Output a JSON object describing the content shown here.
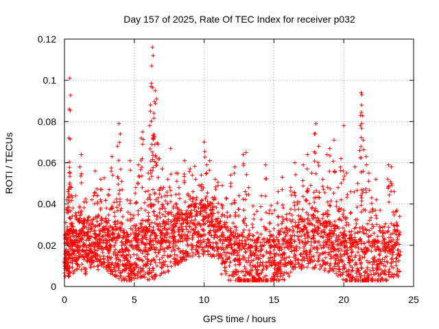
{
  "chart_data": {
    "type": "scatter",
    "title": "Day 157 of 2025, Rate Of TEC Index for receiver p032",
    "xlabel": "GPS time / hours",
    "ylabel": "ROTI / TECUs",
    "xlim": [
      0,
      25
    ],
    "ylim": [
      0,
      0.12
    ],
    "x_ticks": [
      0,
      5,
      10,
      15,
      20,
      25
    ],
    "y_ticks": [
      0,
      0.02,
      0.04,
      0.06,
      0.08,
      0.1,
      0.12
    ],
    "x_tick_labels": [
      "0",
      "5",
      "10",
      "15",
      "20",
      "25"
    ],
    "y_tick_labels": [
      "0",
      "0.02",
      "0.04",
      "0.06",
      "0.08",
      "0.1",
      "0.12"
    ],
    "grid": true,
    "marker": "plus",
    "color": "#ff0000",
    "series": [
      {
        "points": [
          [
            0.0,
            0.012
          ],
          [
            0.05,
            0.021
          ],
          [
            0.1,
            0.031
          ],
          [
            0.12,
            0.018
          ],
          [
            0.18,
            0.042
          ],
          [
            0.2,
            0.025
          ],
          [
            0.25,
            0.046
          ],
          [
            0.3,
            0.016
          ],
          [
            0.32,
            0.072
          ],
          [
            0.35,
            0.086
          ],
          [
            0.38,
            0.101
          ],
          [
            0.4,
            0.055
          ],
          [
            0.45,
            0.033
          ],
          [
            0.5,
            0.048
          ],
          [
            0.55,
            0.022
          ],
          [
            0.6,
            0.038
          ],
          [
            0.7,
            0.027
          ],
          [
            0.8,
            0.044
          ],
          [
            0.9,
            0.019
          ],
          [
            1.0,
            0.036
          ],
          [
            1.1,
            0.058
          ],
          [
            1.2,
            0.064
          ],
          [
            1.3,
            0.028
          ],
          [
            1.4,
            0.041
          ],
          [
            1.5,
            0.017
          ],
          [
            1.7,
            0.032
          ],
          [
            1.9,
            0.024
          ],
          [
            2.1,
            0.044
          ],
          [
            2.2,
            0.056
          ],
          [
            2.4,
            0.021
          ],
          [
            2.6,
            0.052
          ],
          [
            2.8,
            0.029
          ],
          [
            3.0,
            0.038
          ],
          [
            3.2,
            0.047
          ],
          [
            3.4,
            0.063
          ],
          [
            3.6,
            0.034
          ],
          [
            3.8,
            0.068
          ],
          [
            3.9,
            0.079
          ],
          [
            4.0,
            0.074
          ],
          [
            4.1,
            0.051
          ],
          [
            4.3,
            0.026
          ],
          [
            4.5,
            0.042
          ],
          [
            4.7,
            0.061
          ],
          [
            4.9,
            0.033
          ],
          [
            5.1,
            0.048
          ],
          [
            5.3,
            0.059
          ],
          [
            5.5,
            0.072
          ],
          [
            5.6,
            0.075
          ],
          [
            5.8,
            0.046
          ],
          [
            6.0,
            0.055
          ],
          [
            6.1,
            0.078
          ],
          [
            6.2,
            0.097
          ],
          [
            6.25,
            0.107
          ],
          [
            6.3,
            0.116
          ],
          [
            6.35,
            0.112
          ],
          [
            6.4,
            0.084
          ],
          [
            6.5,
            0.095
          ],
          [
            6.6,
            0.091
          ],
          [
            6.7,
            0.069
          ],
          [
            6.8,
            0.062
          ],
          [
            7.0,
            0.057
          ],
          [
            7.2,
            0.044
          ],
          [
            7.4,
            0.052
          ],
          [
            7.6,
            0.067
          ],
          [
            7.8,
            0.038
          ],
          [
            8.0,
            0.055
          ],
          [
            8.2,
            0.048
          ],
          [
            8.4,
            0.029
          ],
          [
            8.6,
            0.061
          ],
          [
            8.8,
            0.034
          ],
          [
            9.0,
            0.057
          ],
          [
            9.2,
            0.046
          ],
          [
            9.4,
            0.052
          ],
          [
            9.6,
            0.038
          ],
          [
            9.8,
            0.054
          ],
          [
            10.0,
            0.07
          ],
          [
            10.2,
            0.059
          ],
          [
            10.4,
            0.061
          ],
          [
            10.6,
            0.043
          ],
          [
            10.8,
            0.052
          ],
          [
            11.0,
            0.036
          ],
          [
            11.3,
            0.049
          ],
          [
            11.6,
            0.031
          ],
          [
            11.9,
            0.054
          ],
          [
            12.2,
            0.058
          ],
          [
            12.5,
            0.044
          ],
          [
            12.8,
            0.064
          ],
          [
            13.0,
            0.065
          ],
          [
            13.2,
            0.048
          ],
          [
            13.5,
            0.039
          ],
          [
            13.8,
            0.026
          ],
          [
            14.1,
            0.044
          ],
          [
            14.4,
            0.059
          ],
          [
            14.7,
            0.037
          ],
          [
            15.0,
            0.028
          ],
          [
            15.3,
            0.046
          ],
          [
            15.6,
            0.053
          ],
          [
            15.9,
            0.035
          ],
          [
            16.2,
            0.048
          ],
          [
            16.5,
            0.06
          ],
          [
            16.8,
            0.041
          ],
          [
            17.1,
            0.059
          ],
          [
            17.4,
            0.064
          ],
          [
            17.7,
            0.055
          ],
          [
            17.9,
            0.074
          ],
          [
            18.0,
            0.079
          ],
          [
            18.2,
            0.068
          ],
          [
            18.5,
            0.052
          ],
          [
            18.8,
            0.064
          ],
          [
            19.0,
            0.067
          ],
          [
            19.3,
            0.071
          ],
          [
            19.6,
            0.048
          ],
          [
            19.8,
            0.062
          ],
          [
            20.0,
            0.078
          ],
          [
            20.2,
            0.055
          ],
          [
            20.5,
            0.046
          ],
          [
            20.8,
            0.058
          ],
          [
            21.0,
            0.05
          ],
          [
            21.2,
            0.083
          ],
          [
            21.25,
            0.094
          ],
          [
            21.3,
            0.093
          ],
          [
            21.4,
            0.071
          ],
          [
            21.6,
            0.063
          ],
          [
            21.8,
            0.055
          ],
          [
            22.0,
            0.043
          ],
          [
            22.3,
            0.052
          ],
          [
            22.6,
            0.037
          ],
          [
            22.9,
            0.029
          ],
          [
            23.2,
            0.059
          ],
          [
            23.4,
            0.058
          ],
          [
            23.6,
            0.046
          ],
          [
            23.8,
            0.037
          ],
          [
            24.0,
            0.034
          ]
        ]
      }
    ]
  }
}
